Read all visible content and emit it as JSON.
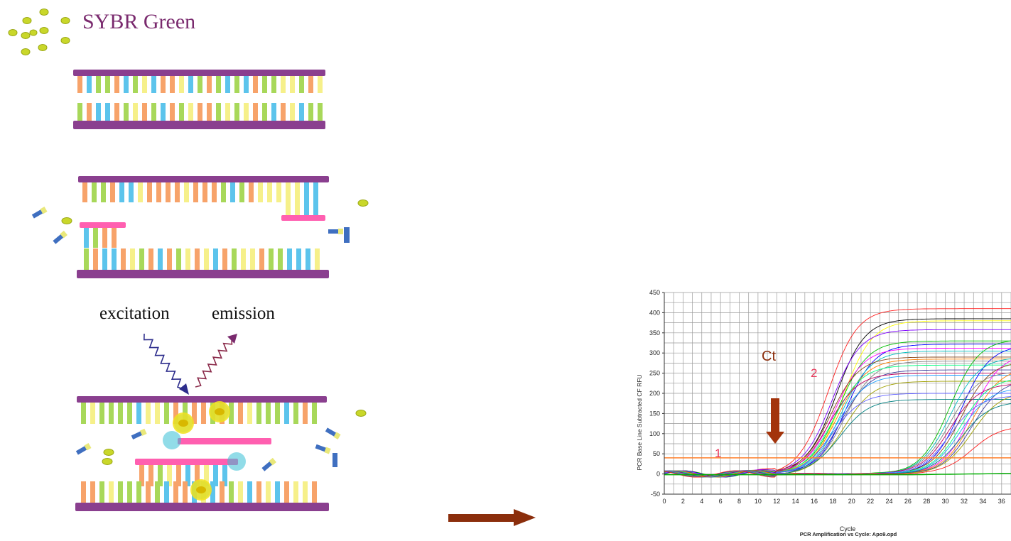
{
  "diagram": {
    "title": "SYBR Green",
    "excitation_label": "excitation",
    "emission_label": "emission",
    "colors": {
      "backbone": "#8a3f8f",
      "primer": "#ff5fb0",
      "dye": "#f2e21c",
      "fluor_ring": "#36c0d6",
      "arrow": "#8b2e0c",
      "bases": [
        "#a8d85a",
        "#f7a36a",
        "#5cc4ec",
        "#f6f08a"
      ]
    }
  },
  "chart": {
    "ylabel": "PCR Base Line Subtracted CF RFU",
    "xlabel": "Cycle",
    "caption": "PCR Amplification vs Cycle: Apo9.opd",
    "ct_label": "Ct",
    "label_1": "1",
    "label_2": "2",
    "threshold_color": "#ff7f2a"
  },
  "chart_data": {
    "type": "line",
    "xlim": [
      0,
      37
    ],
    "ylim": [
      -50,
      450
    ],
    "x_ticks": [
      0,
      2,
      4,
      6,
      8,
      10,
      12,
      14,
      16,
      18,
      20,
      22,
      24,
      26,
      28,
      30,
      32,
      34,
      36
    ],
    "y_ticks": [
      -50,
      0,
      50,
      100,
      150,
      200,
      250,
      300,
      350,
      400,
      450
    ],
    "threshold": 40,
    "grid": true,
    "early_group": {
      "midpoint_range": [
        17.5,
        19.5
      ],
      "plateaus": [
        410,
        385,
        380,
        358,
        330,
        322,
        312,
        305,
        290,
        285,
        280,
        270,
        258,
        250,
        245,
        230,
        200,
        185
      ]
    },
    "late_group": {
      "midpoint_range": [
        30.5,
        34
      ],
      "plateaus": [
        335,
        320,
        300,
        290,
        280,
        265,
        255,
        240,
        235,
        225,
        215,
        205,
        195,
        180,
        120
      ]
    },
    "baseline_segments": [
      {
        "x": [
          0,
          1,
          2,
          3,
          4,
          5,
          6,
          7,
          8,
          9,
          10,
          11
        ],
        "y": [
          6,
          -2,
          -8,
          -4,
          4,
          8,
          6,
          0,
          -6,
          -10,
          -8,
          0
        ]
      }
    ]
  }
}
